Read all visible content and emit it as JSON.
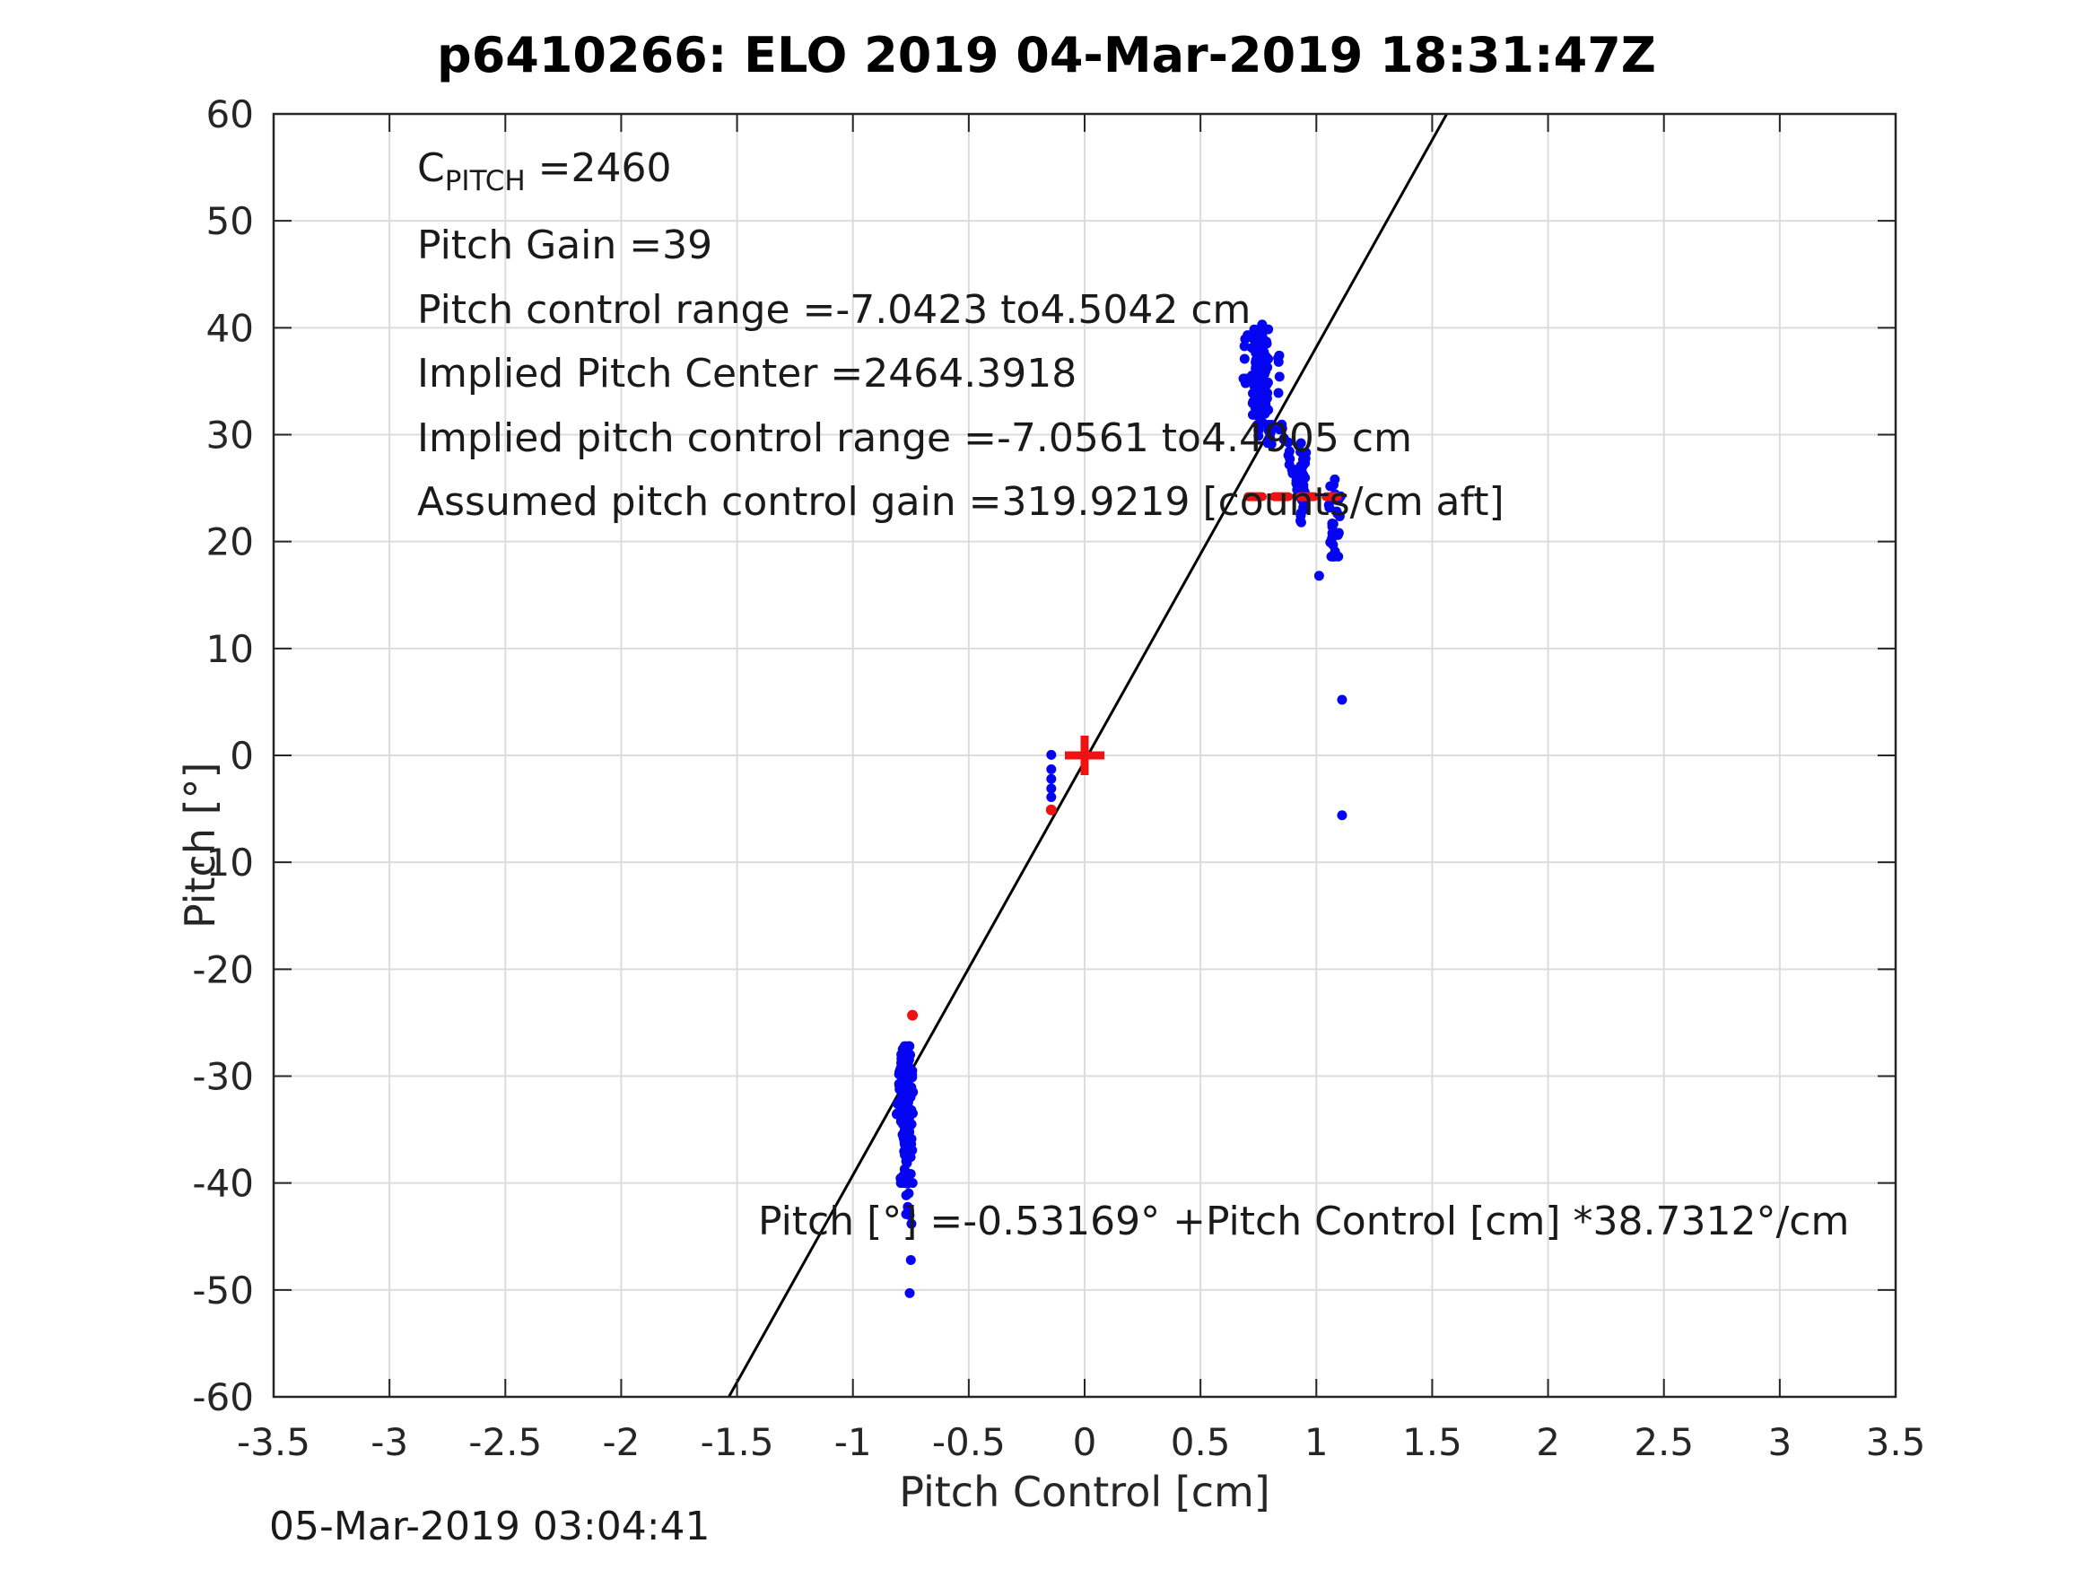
{
  "title": "p6410266: ELO 2019 04-Mar-2019 18:31:47Z",
  "footer": {
    "timestamp": "05-Mar-2019 03:04:41"
  },
  "axes": {
    "x_label": "Pitch Control [cm]",
    "y_label": "Pitch [°]"
  },
  "annotations": {
    "c_base": "C",
    "c_sub": "PITCH",
    "c_value": " =2460",
    "line2": "Pitch Gain =39",
    "line3": "Pitch control range =-7.0423 to4.5042 cm",
    "line4": "Implied Pitch Center =2464.3918",
    "line5": "Implied pitch control range =-7.0561 to4.4905 cm",
    "line6": "Assumed pitch control gain =319.9219 [counts/cm aft]",
    "equation": "Pitch [°] =-0.53169° +Pitch Control [cm] *38.7312°/cm"
  },
  "colors": {
    "blue_marker": "#0505F2",
    "red_marker": "#F01212",
    "fit_line": "#000000",
    "grid": "#DCDCDC",
    "frame": "#262626",
    "tick_text": "#262626"
  },
  "chart_data": {
    "type": "scatter",
    "title": "p6410266: ELO 2019 04-Mar-2019 18:31:47Z",
    "xlabel": "Pitch Control [cm]",
    "ylabel": "Pitch [°]",
    "xlim": [
      -3.5,
      3.5
    ],
    "ylim": [
      -60,
      60
    ],
    "grid": true,
    "x_tick_values": [
      -3.5,
      -3,
      -2.5,
      -2,
      -1.5,
      -1,
      -0.5,
      0,
      0.5,
      1,
      1.5,
      2,
      2.5,
      3,
      3.5
    ],
    "x_tick_labels": [
      "-3.5",
      "-3",
      "-2.5",
      "-2",
      "-1.5",
      "-1",
      "-0.5",
      "0",
      "0.5",
      "1",
      "1.5",
      "2",
      "2.5",
      "3",
      "3.5"
    ],
    "y_tick_values": [
      -60,
      -50,
      -40,
      -30,
      -20,
      -10,
      0,
      10,
      20,
      30,
      40,
      50,
      60
    ],
    "y_tick_labels": [
      "-60",
      "-50",
      "-40",
      "-30",
      "-20",
      "-10",
      "0",
      "10",
      "20",
      "30",
      "40",
      "50",
      "60"
    ],
    "fit_line": {
      "intercept": -0.53169,
      "slope": 38.7312
    },
    "red_dashed_line": {
      "y": 24.2,
      "x1": 0.705,
      "x2": 1.09
    },
    "red_plus": {
      "x": 0.0,
      "y": 0.0
    },
    "red_points": [
      [
        -0.144,
        -5.1
      ],
      [
        -0.743,
        -24.3
      ]
    ],
    "blue_points": [
      [
        0.703,
        39.3
      ],
      [
        1.012,
        16.8
      ],
      [
        1.111,
        5.2
      ],
      [
        1.111,
        -5.6
      ],
      [
        -0.144,
        0.05
      ],
      [
        -0.144,
        -1.3
      ],
      [
        -0.144,
        -2.2
      ],
      [
        -0.144,
        -3.1
      ],
      [
        -0.144,
        -3.9
      ],
      [
        -0.75,
        -47.2
      ],
      [
        -0.755,
        -50.3
      ]
    ],
    "blue_clusters": [
      {
        "name": "upper-main",
        "cx": 0.757,
        "sx": 0.016,
        "my": 35.2,
        "sy": 2.3,
        "ymin": 29.4,
        "ymax": 40.3,
        "count": 150
      },
      {
        "name": "upper-neck",
        "cx": 0.8,
        "sx": 0.005,
        "my": 30.3,
        "sy": 0.9,
        "ymin": 28.9,
        "ymax": 31.8,
        "count": 12
      },
      {
        "name": "upper-left-fringe",
        "cx": 0.693,
        "sx": 0.004,
        "my": 36.5,
        "sy": 2.2,
        "ymin": 33.8,
        "ymax": 39.8,
        "count": 7
      },
      {
        "name": "upper-right-fringe",
        "cx": 0.838,
        "sx": 0.004,
        "my": 35.5,
        "sy": 1.5,
        "ymin": 33.9,
        "ymax": 37.4,
        "count": 5
      },
      {
        "name": "upper-strip2",
        "cx": 0.94,
        "sx": 0.007,
        "my": 25.3,
        "sy": 2.0,
        "ymin": 21.8,
        "ymax": 29.2,
        "count": 42
      },
      {
        "name": "upper-strip3",
        "cx": 1.078,
        "sx": 0.013,
        "my": 22.6,
        "sy": 2.1,
        "ymin": 18.6,
        "ymax": 26.6,
        "count": 26
      },
      {
        "name": "lower-main-a",
        "cx": -0.776,
        "sx": 0.016,
        "my": -30.6,
        "sy": 2.0,
        "ymin": -34.5,
        "ymax": -27.2,
        "count": 120
      },
      {
        "name": "lower-main-b",
        "cx": -0.768,
        "sx": 0.012,
        "my": -36.0,
        "sy": 2.2,
        "ymin": -40.0,
        "ymax": -31.5,
        "count": 80
      },
      {
        "name": "lower-tail",
        "cx": -0.762,
        "sx": 0.007,
        "my": -42.0,
        "sy": 1.6,
        "ymin": -45.0,
        "ymax": -39.8,
        "count": 14
      }
    ],
    "blue_segments": [
      {
        "name": "upper-chain",
        "x1": 0.845,
        "y1": 30.6,
        "x2": 0.92,
        "y2": 25.4,
        "jx": 0.006,
        "jy": 0.5,
        "count": 16
      }
    ]
  }
}
